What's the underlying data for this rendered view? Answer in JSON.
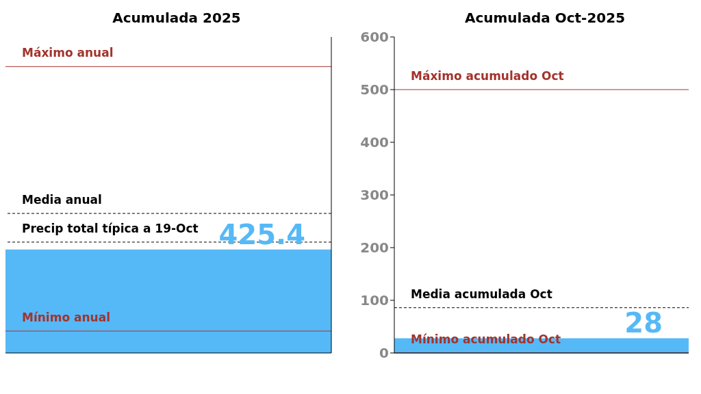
{
  "chart_data": [
    {
      "type": "bar",
      "title": "Acumulada 2025",
      "categories": [
        null
      ],
      "values": [
        425.4
      ],
      "color": "#56b9f7",
      "data_labels": true,
      "ylim": [
        0,
        1300
      ],
      "tick_labels": false,
      "ref_lines": [
        {
          "axis": "y",
          "value": 1178,
          "label": "Máximo anual",
          "color": "#a3332d",
          "line_style": "solid"
        },
        {
          "axis": "y",
          "value": 574,
          "label": "Media anual",
          "color": "#000000",
          "line_style": "dashed"
        },
        {
          "axis": "y",
          "value": 456,
          "label": "Precip total típica a 19-Oct",
          "color": "#000000",
          "line_style": "dashed"
        },
        {
          "axis": "y",
          "value": 90,
          "label": "Mínimo anual",
          "color": "#a3332d",
          "line_style": "solid"
        }
      ]
    },
    {
      "type": "bar",
      "title": "Acumulada Oct-2025",
      "categories": [
        null
      ],
      "values": [
        28
      ],
      "color": "#56b9f7",
      "data_labels": true,
      "ylim": [
        0,
        600
      ],
      "yticks": [
        0,
        100,
        200,
        300,
        400,
        500,
        600
      ],
      "tick_labels": "y",
      "ref_lines": [
        {
          "axis": "y",
          "value": 500,
          "label": "Máximo acumulado Oct",
          "color": "#a3332d",
          "line_style": "solid"
        },
        {
          "axis": "y",
          "value": 86,
          "label": "Media acumulada Oct",
          "color": "#000000",
          "line_style": "dashed"
        },
        {
          "axis": "y",
          "value": 0,
          "label": "Mínimo acumulado Oct",
          "color": "#a3332d",
          "line_style": "solid"
        }
      ]
    }
  ]
}
